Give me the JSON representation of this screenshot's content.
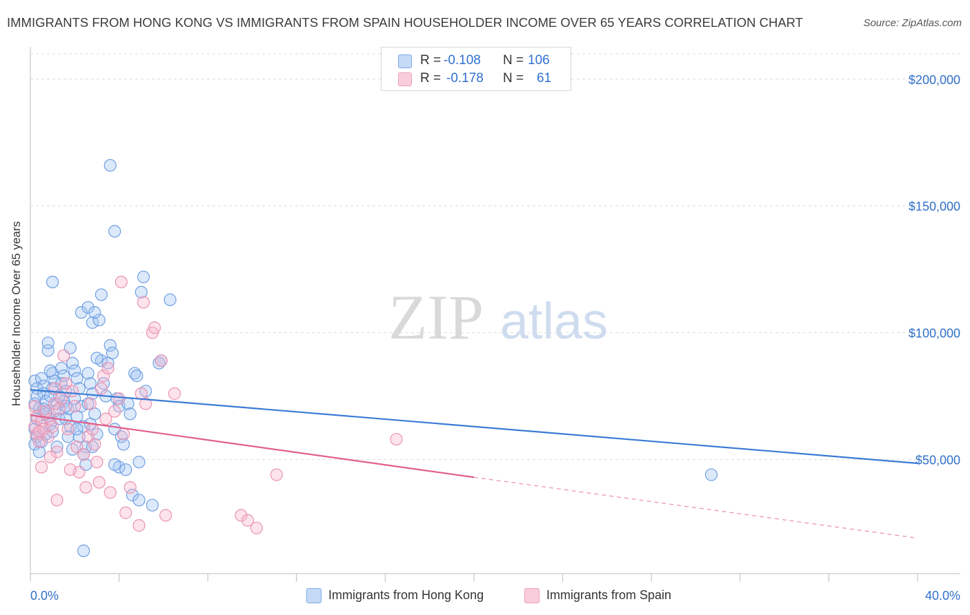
{
  "title": "IMMIGRANTS FROM HONG KONG VS IMMIGRANTS FROM SPAIN HOUSEHOLDER INCOME OVER 65 YEARS CORRELATION CHART",
  "source": "Source: ZipAtlas.com",
  "watermark": {
    "zip": "ZIP",
    "atlas": "atlas"
  },
  "legend": {
    "r_label": "R =",
    "n_label": "N =",
    "rows": [
      {
        "r": "-0.108",
        "n": "106",
        "color": "#a9c8f2",
        "border": "#6b9be0"
      },
      {
        "r": "-0.178",
        "n": "61",
        "color": "#f7bcd0",
        "border": "#e889ab"
      }
    ]
  },
  "bottom_legend": [
    {
      "label": "Immigrants from Hong Kong",
      "color": "#c5daf7",
      "border": "#7ea9e6"
    },
    {
      "label": "Immigrants from Spain",
      "color": "#f9cddc",
      "border": "#ec9fba"
    }
  ],
  "chart_data": {
    "type": "scatter",
    "title": "IMMIGRANTS FROM HONG KONG VS IMMIGRANTS FROM SPAIN HOUSEHOLDER INCOME OVER 65 YEARS CORRELATION CHART",
    "xlabel": "",
    "ylabel": "Householder Income Over 65 years",
    "xlim": [
      0,
      40
    ],
    "ylim": [
      5000,
      210000
    ],
    "x_tick_labels": [
      "0.0%",
      "40.0%"
    ],
    "y_ticks": [
      50000,
      100000,
      150000,
      200000
    ],
    "y_tick_labels": [
      "$50,000",
      "$100,000",
      "$150,000",
      "$200,000"
    ],
    "grid": true,
    "colors": {
      "hongkong": "#3a7bd5",
      "spain": "#e05f8c",
      "axis_labels": "#3070c9"
    },
    "series": [
      {
        "name": "Immigrants from Hong Kong",
        "trend": {
          "x": [
            0,
            40
          ],
          "y": [
            77500,
            48500
          ],
          "dashed_from": null
        },
        "points": [
          [
            0.2,
            81000
          ],
          [
            0.3,
            78000
          ],
          [
            0.3,
            75000
          ],
          [
            0.2,
            72000
          ],
          [
            0.4,
            70000
          ],
          [
            0.3,
            66000
          ],
          [
            0.2,
            62000
          ],
          [
            0.3,
            59000
          ],
          [
            0.2,
            56000
          ],
          [
            0.4,
            53000
          ],
          [
            0.5,
            82000
          ],
          [
            0.6,
            79000
          ],
          [
            0.6,
            76000
          ],
          [
            0.7,
            73000
          ],
          [
            0.6,
            70000
          ],
          [
            0.8,
            67000
          ],
          [
            0.9,
            64000
          ],
          [
            0.7,
            60000
          ],
          [
            0.5,
            57000
          ],
          [
            0.8,
            93000
          ],
          [
            0.8,
            96000
          ],
          [
            1.0,
            84000
          ],
          [
            1.1,
            81000
          ],
          [
            1.0,
            78000
          ],
          [
            0.9,
            75000
          ],
          [
            1.2,
            72000
          ],
          [
            1.1,
            69000
          ],
          [
            1.3,
            66000
          ],
          [
            1.0,
            61000
          ],
          [
            1.2,
            55000
          ],
          [
            1.4,
            86000
          ],
          [
            1.5,
            83000
          ],
          [
            1.4,
            80000
          ],
          [
            1.6,
            77000
          ],
          [
            1.5,
            73000
          ],
          [
            1.7,
            70000
          ],
          [
            1.6,
            66000
          ],
          [
            1.8,
            63000
          ],
          [
            1.7,
            59000
          ],
          [
            1.9,
            54000
          ],
          [
            1.9,
            88000
          ],
          [
            2.0,
            85000
          ],
          [
            2.1,
            82000
          ],
          [
            2.2,
            78000
          ],
          [
            2.0,
            74000
          ],
          [
            2.3,
            71000
          ],
          [
            2.1,
            67000
          ],
          [
            2.4,
            63000
          ],
          [
            2.2,
            59000
          ],
          [
            2.5,
            55000
          ],
          [
            2.4,
            52000
          ],
          [
            2.5,
            48000
          ],
          [
            2.6,
            84000
          ],
          [
            2.7,
            80000
          ],
          [
            2.8,
            76000
          ],
          [
            2.6,
            72000
          ],
          [
            2.9,
            68000
          ],
          [
            2.7,
            64000
          ],
          [
            3.0,
            60000
          ],
          [
            2.8,
            55000
          ],
          [
            1.8,
            94000
          ],
          [
            2.3,
            108000
          ],
          [
            2.6,
            110000
          ],
          [
            2.8,
            104000
          ],
          [
            3.1,
            105000
          ],
          [
            2.9,
            108000
          ],
          [
            3.2,
            115000
          ],
          [
            3.6,
            166000
          ],
          [
            3.8,
            140000
          ],
          [
            1.0,
            120000
          ],
          [
            3.2,
            89000
          ],
          [
            3.5,
            88000
          ],
          [
            3.3,
            80000
          ],
          [
            3.4,
            75000
          ],
          [
            3.6,
            95000
          ],
          [
            3.7,
            92000
          ],
          [
            3.9,
            74000
          ],
          [
            4.0,
            71000
          ],
          [
            3.8,
            62000
          ],
          [
            4.1,
            59000
          ],
          [
            4.0,
            47000
          ],
          [
            4.3,
            46000
          ],
          [
            4.4,
            72000
          ],
          [
            4.5,
            68000
          ],
          [
            4.7,
            84000
          ],
          [
            4.8,
            83000
          ],
          [
            4.9,
            49000
          ],
          [
            4.6,
            36000
          ],
          [
            4.9,
            34000
          ],
          [
            5.2,
            77000
          ],
          [
            5.0,
            116000
          ],
          [
            5.1,
            122000
          ],
          [
            5.5,
            32000
          ],
          [
            5.8,
            88000
          ],
          [
            6.3,
            113000
          ],
          [
            2.4,
            14000
          ],
          [
            3.8,
            48000
          ],
          [
            4.2,
            56000
          ],
          [
            3.0,
            90000
          ],
          [
            2.1,
            62000
          ],
          [
            1.6,
            71000
          ],
          [
            1.3,
            75000
          ],
          [
            0.9,
            85000
          ],
          [
            0.7,
            68000
          ],
          [
            30.7,
            44000
          ],
          [
            5.9,
            89000
          ]
        ]
      },
      {
        "name": "Immigrants from Spain",
        "trend": {
          "x": [
            0,
            20
          ],
          "y": [
            67500,
            43000
          ],
          "dashed_from": 20,
          "dashed_to": [
            40,
            19000
          ]
        },
        "points": [
          [
            0.2,
            71000
          ],
          [
            0.3,
            67000
          ],
          [
            0.2,
            63000
          ],
          [
            0.3,
            60000
          ],
          [
            0.4,
            57000
          ],
          [
            0.5,
            65000
          ],
          [
            0.6,
            62000
          ],
          [
            0.7,
            69000
          ],
          [
            0.5,
            47000
          ],
          [
            0.8,
            59000
          ],
          [
            0.9,
            66000
          ],
          [
            1.0,
            63000
          ],
          [
            1.1,
            72000
          ],
          [
            1.2,
            53000
          ],
          [
            1.3,
            70000
          ],
          [
            1.1,
            78000
          ],
          [
            1.4,
            74000
          ],
          [
            1.5,
            91000
          ],
          [
            1.6,
            80000
          ],
          [
            1.7,
            62000
          ],
          [
            1.9,
            77000
          ],
          [
            2.0,
            71000
          ],
          [
            2.1,
            55000
          ],
          [
            2.2,
            45000
          ],
          [
            2.4,
            52000
          ],
          [
            2.5,
            39000
          ],
          [
            2.6,
            59000
          ],
          [
            2.8,
            62000
          ],
          [
            2.9,
            56000
          ],
          [
            3.0,
            49000
          ],
          [
            3.1,
            41000
          ],
          [
            3.2,
            78000
          ],
          [
            3.3,
            83000
          ],
          [
            3.4,
            66000
          ],
          [
            3.5,
            86000
          ],
          [
            3.6,
            37000
          ],
          [
            3.8,
            69000
          ],
          [
            4.0,
            74000
          ],
          [
            4.2,
            60000
          ],
          [
            4.1,
            120000
          ],
          [
            4.3,
            29000
          ],
          [
            4.5,
            39000
          ],
          [
            4.9,
            24000
          ],
          [
            5.0,
            76000
          ],
          [
            5.1,
            112000
          ],
          [
            5.2,
            72000
          ],
          [
            5.5,
            100000
          ],
          [
            5.6,
            102000
          ],
          [
            5.9,
            89000
          ],
          [
            6.1,
            28000
          ],
          [
            6.5,
            76000
          ],
          [
            9.5,
            28000
          ],
          [
            9.8,
            26000
          ],
          [
            10.2,
            23000
          ],
          [
            11.1,
            44000
          ],
          [
            16.5,
            58000
          ],
          [
            1.2,
            34000
          ],
          [
            0.9,
            51000
          ],
          [
            2.7,
            72000
          ],
          [
            0.4,
            61000
          ],
          [
            1.8,
            46000
          ]
        ]
      }
    ]
  }
}
